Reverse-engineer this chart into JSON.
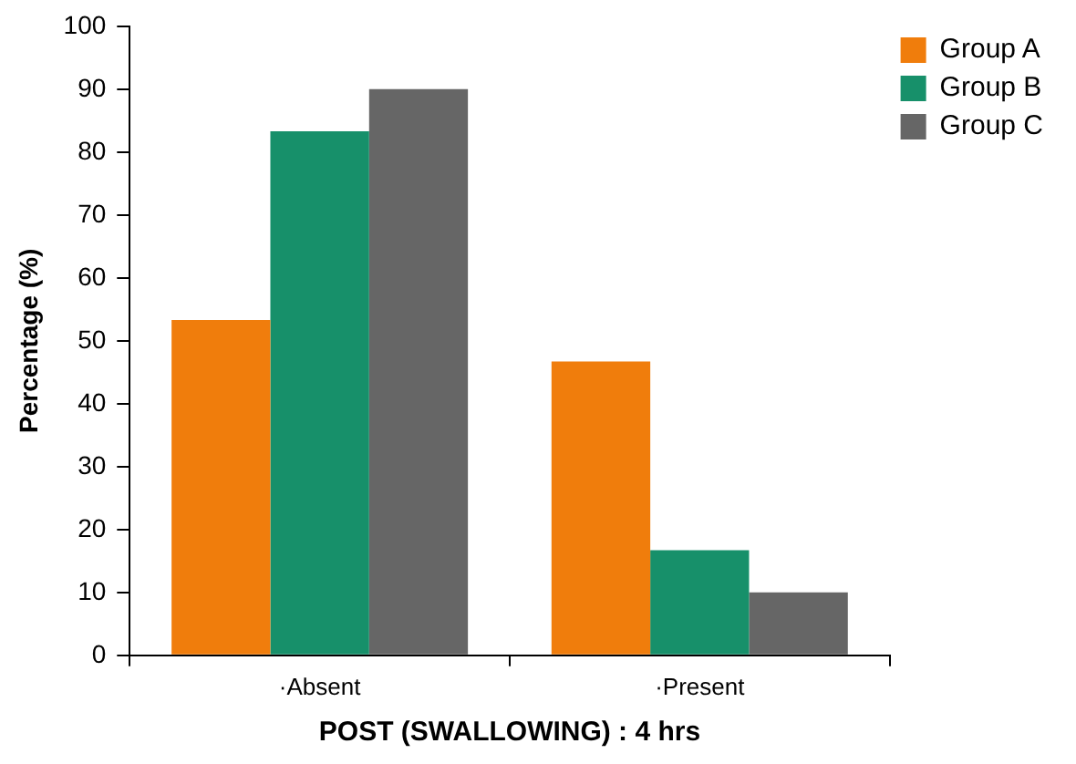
{
  "chart_data": {
    "type": "bar",
    "xlabel": "POST (SWALLOWING) : 4 hrs",
    "ylabel": "Percentage (%)",
    "categories": [
      "·Absent",
      "·Present"
    ],
    "series": [
      {
        "name": "Group A",
        "color": "#f07d0c",
        "values": [
          53.3,
          46.7
        ]
      },
      {
        "name": "Group B",
        "color": "#17906a",
        "values": [
          83.3,
          16.7
        ]
      },
      {
        "name": "Group C",
        "color": "#666666",
        "values": [
          90,
          10
        ]
      }
    ],
    "ylim": [
      0,
      100
    ],
    "yticks": [
      0,
      10,
      20,
      30,
      40,
      50,
      60,
      70,
      80,
      90,
      100
    ],
    "grid": false,
    "legend": "right"
  }
}
